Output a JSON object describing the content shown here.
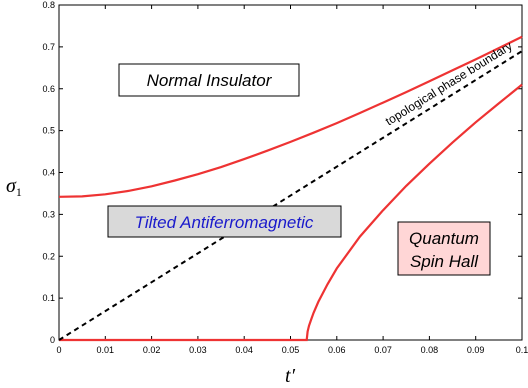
{
  "chart_data": {
    "type": "line",
    "xlabel": "t′",
    "ylabel": "σ",
    "ylabel_sub": "1",
    "xlim": [
      0,
      0.1
    ],
    "ylim": [
      0,
      0.8
    ],
    "x_ticks": [
      0,
      0.01,
      0.02,
      0.03,
      0.04,
      0.05,
      0.06,
      0.07,
      0.08,
      0.09,
      0.1
    ],
    "x_tick_labels": [
      "0",
      "0.01",
      "0.02",
      "0.03",
      "0.04",
      "0.05",
      "0.06",
      "0.07",
      "0.08",
      "0.09",
      "0.1"
    ],
    "y_ticks": [
      0,
      0.1,
      0.2,
      0.3,
      0.4,
      0.5,
      0.6,
      0.7,
      0.8
    ],
    "y_tick_labels": [
      "0",
      "0.1",
      "0.2",
      "0.3",
      "0.4",
      "0.5",
      "0.6",
      "0.7",
      "0.8"
    ],
    "grid": false,
    "colors": {
      "boundary": "#ee3333",
      "dashed": "#000000"
    },
    "series": [
      {
        "style": "solid-red",
        "x": [
          0,
          0.005,
          0.01,
          0.015,
          0.02,
          0.025,
          0.03,
          0.035,
          0.04,
          0.045,
          0.05,
          0.055,
          0.06,
          0.065,
          0.07,
          0.075,
          0.08,
          0.085,
          0.09,
          0.095,
          0.1
        ],
        "y": [
          0.342,
          0.343,
          0.348,
          0.356,
          0.367,
          0.381,
          0.396,
          0.413,
          0.432,
          0.452,
          0.473,
          0.495,
          0.518,
          0.542,
          0.567,
          0.592,
          0.618,
          0.644,
          0.67,
          0.697,
          0.724
        ]
      },
      {
        "style": "solid-red",
        "x": [
          0,
          0.01,
          0.02,
          0.03,
          0.04,
          0.05,
          0.0535,
          0.0537,
          0.054,
          0.0545,
          0.055,
          0.056,
          0.058,
          0.06,
          0.065,
          0.07,
          0.075,
          0.08,
          0.085,
          0.09,
          0.095,
          0.1
        ],
        "y": [
          0,
          0,
          0,
          0,
          0,
          0,
          0,
          0.02,
          0.034,
          0.05,
          0.065,
          0.091,
          0.133,
          0.171,
          0.247,
          0.31,
          0.368,
          0.421,
          0.472,
          0.52,
          0.565,
          0.61
        ]
      },
      {
        "style": "dashed-black",
        "x": [
          0,
          0.1
        ],
        "y": [
          0,
          0.69
        ]
      }
    ],
    "annotations": {
      "normal_insulator": "Normal Insulator",
      "tilted_af": "Tilted Antiferromagnetic",
      "qsh_line1": "Quantum",
      "qsh_line2": "Spin Hall",
      "boundary_label": "topological phase boundary"
    }
  }
}
